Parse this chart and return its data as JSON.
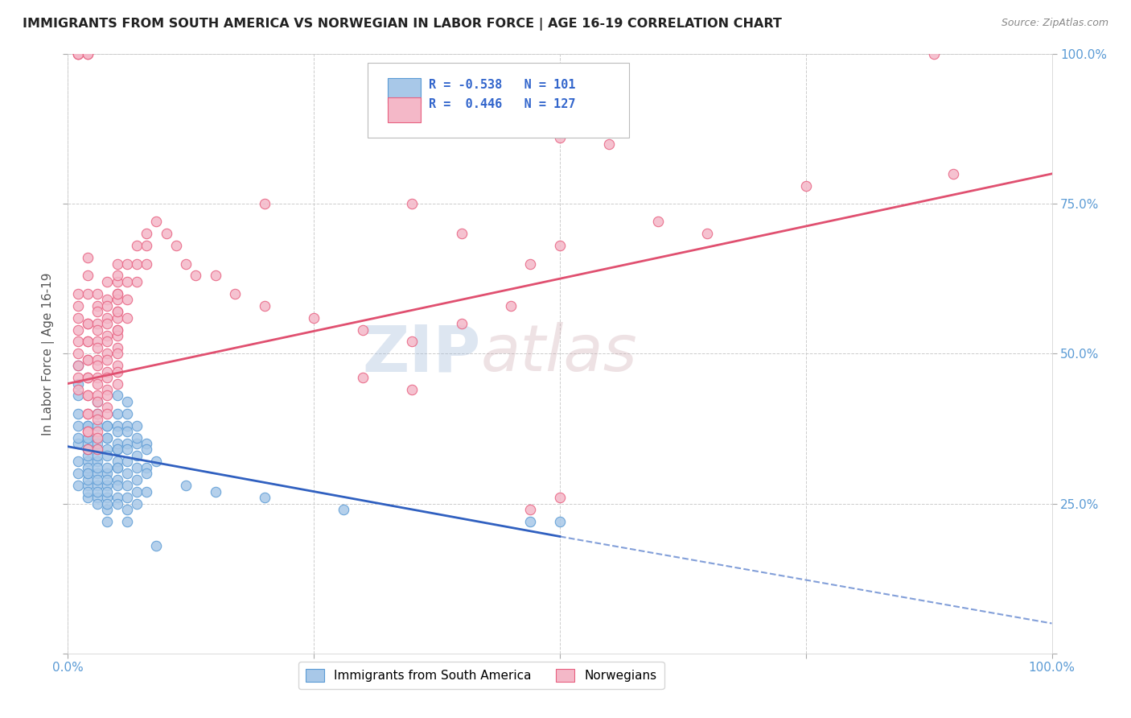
{
  "title": "IMMIGRANTS FROM SOUTH AMERICA VS NORWEGIAN IN LABOR FORCE | AGE 16-19 CORRELATION CHART",
  "source": "Source: ZipAtlas.com",
  "ylabel": "In Labor Force | Age 16-19",
  "xlim": [
    0.0,
    1.0
  ],
  "ylim": [
    0.0,
    1.0
  ],
  "blue_R": -0.538,
  "blue_N": 101,
  "pink_R": 0.446,
  "pink_N": 127,
  "blue_color": "#a8c8e8",
  "pink_color": "#f4b8c8",
  "blue_edge_color": "#5b9bd5",
  "pink_edge_color": "#e86080",
  "blue_line_color": "#3060c0",
  "pink_line_color": "#e05070",
  "blue_scatter": [
    [
      0.01,
      0.38
    ],
    [
      0.01,
      0.35
    ],
    [
      0.01,
      0.32
    ],
    [
      0.01,
      0.4
    ],
    [
      0.01,
      0.43
    ],
    [
      0.01,
      0.45
    ],
    [
      0.01,
      0.28
    ],
    [
      0.01,
      0.48
    ],
    [
      0.01,
      0.3
    ],
    [
      0.01,
      0.36
    ],
    [
      0.02,
      0.36
    ],
    [
      0.02,
      0.34
    ],
    [
      0.02,
      0.3
    ],
    [
      0.02,
      0.32
    ],
    [
      0.02,
      0.28
    ],
    [
      0.02,
      0.26
    ],
    [
      0.02,
      0.35
    ],
    [
      0.02,
      0.38
    ],
    [
      0.02,
      0.33
    ],
    [
      0.02,
      0.31
    ],
    [
      0.02,
      0.29
    ],
    [
      0.02,
      0.38
    ],
    [
      0.02,
      0.36
    ],
    [
      0.02,
      0.34
    ],
    [
      0.02,
      0.3
    ],
    [
      0.02,
      0.27
    ],
    [
      0.03,
      0.36
    ],
    [
      0.03,
      0.34
    ],
    [
      0.03,
      0.32
    ],
    [
      0.03,
      0.3
    ],
    [
      0.03,
      0.28
    ],
    [
      0.03,
      0.26
    ],
    [
      0.03,
      0.38
    ],
    [
      0.03,
      0.4
    ],
    [
      0.03,
      0.35
    ],
    [
      0.03,
      0.33
    ],
    [
      0.03,
      0.31
    ],
    [
      0.03,
      0.29
    ],
    [
      0.03,
      0.27
    ],
    [
      0.03,
      0.25
    ],
    [
      0.03,
      0.42
    ],
    [
      0.04,
      0.38
    ],
    [
      0.04,
      0.36
    ],
    [
      0.04,
      0.34
    ],
    [
      0.04,
      0.3
    ],
    [
      0.04,
      0.28
    ],
    [
      0.04,
      0.26
    ],
    [
      0.04,
      0.24
    ],
    [
      0.04,
      0.38
    ],
    [
      0.04,
      0.36
    ],
    [
      0.04,
      0.33
    ],
    [
      0.04,
      0.31
    ],
    [
      0.04,
      0.29
    ],
    [
      0.04,
      0.27
    ],
    [
      0.04,
      0.25
    ],
    [
      0.04,
      0.22
    ],
    [
      0.05,
      0.34
    ],
    [
      0.05,
      0.31
    ],
    [
      0.05,
      0.38
    ],
    [
      0.05,
      0.35
    ],
    [
      0.05,
      0.32
    ],
    [
      0.05,
      0.29
    ],
    [
      0.05,
      0.26
    ],
    [
      0.05,
      0.43
    ],
    [
      0.05,
      0.4
    ],
    [
      0.05,
      0.37
    ],
    [
      0.05,
      0.34
    ],
    [
      0.05,
      0.31
    ],
    [
      0.05,
      0.28
    ],
    [
      0.05,
      0.25
    ],
    [
      0.06,
      0.42
    ],
    [
      0.06,
      0.38
    ],
    [
      0.06,
      0.35
    ],
    [
      0.06,
      0.32
    ],
    [
      0.06,
      0.28
    ],
    [
      0.06,
      0.24
    ],
    [
      0.06,
      0.4
    ],
    [
      0.06,
      0.37
    ],
    [
      0.06,
      0.34
    ],
    [
      0.06,
      0.3
    ],
    [
      0.06,
      0.26
    ],
    [
      0.06,
      0.22
    ],
    [
      0.07,
      0.38
    ],
    [
      0.07,
      0.35
    ],
    [
      0.07,
      0.31
    ],
    [
      0.07,
      0.27
    ],
    [
      0.07,
      0.36
    ],
    [
      0.07,
      0.33
    ],
    [
      0.07,
      0.29
    ],
    [
      0.07,
      0.25
    ],
    [
      0.08,
      0.35
    ],
    [
      0.08,
      0.31
    ],
    [
      0.08,
      0.27
    ],
    [
      0.08,
      0.34
    ],
    [
      0.08,
      0.3
    ],
    [
      0.09,
      0.32
    ],
    [
      0.09,
      0.18
    ],
    [
      0.12,
      0.28
    ],
    [
      0.15,
      0.27
    ],
    [
      0.2,
      0.26
    ],
    [
      0.28,
      0.24
    ],
    [
      0.47,
      0.22
    ],
    [
      0.5,
      0.22
    ]
  ],
  "pink_scatter": [
    [
      0.01,
      0.48
    ],
    [
      0.01,
      0.5
    ],
    [
      0.01,
      0.52
    ],
    [
      0.01,
      0.54
    ],
    [
      0.01,
      0.44
    ],
    [
      0.01,
      0.46
    ],
    [
      0.01,
      0.56
    ],
    [
      0.01,
      0.58
    ],
    [
      0.01,
      0.6
    ],
    [
      0.01,
      1.0
    ],
    [
      0.01,
      1.0
    ],
    [
      0.01,
      1.0
    ],
    [
      0.02,
      0.55
    ],
    [
      0.02,
      0.52
    ],
    [
      0.02,
      0.49
    ],
    [
      0.02,
      0.46
    ],
    [
      0.02,
      0.43
    ],
    [
      0.02,
      0.4
    ],
    [
      0.02,
      0.37
    ],
    [
      0.02,
      1.0
    ],
    [
      0.02,
      1.0
    ],
    [
      0.02,
      0.55
    ],
    [
      0.02,
      0.52
    ],
    [
      0.02,
      0.49
    ],
    [
      0.02,
      0.46
    ],
    [
      0.02,
      0.43
    ],
    [
      0.02,
      0.4
    ],
    [
      0.02,
      0.37
    ],
    [
      0.02,
      0.34
    ],
    [
      0.02,
      0.6
    ],
    [
      0.02,
      0.63
    ],
    [
      0.02,
      0.66
    ],
    [
      0.03,
      0.58
    ],
    [
      0.03,
      0.55
    ],
    [
      0.03,
      0.52
    ],
    [
      0.03,
      0.49
    ],
    [
      0.03,
      0.46
    ],
    [
      0.03,
      0.43
    ],
    [
      0.03,
      0.4
    ],
    [
      0.03,
      0.37
    ],
    [
      0.03,
      0.34
    ],
    [
      0.03,
      0.6
    ],
    [
      0.03,
      0.57
    ],
    [
      0.03,
      0.54
    ],
    [
      0.03,
      0.51
    ],
    [
      0.03,
      0.48
    ],
    [
      0.03,
      0.45
    ],
    [
      0.03,
      0.42
    ],
    [
      0.03,
      0.39
    ],
    [
      0.03,
      0.36
    ],
    [
      0.04,
      0.62
    ],
    [
      0.04,
      0.59
    ],
    [
      0.04,
      0.56
    ],
    [
      0.04,
      0.53
    ],
    [
      0.04,
      0.5
    ],
    [
      0.04,
      0.47
    ],
    [
      0.04,
      0.44
    ],
    [
      0.04,
      0.41
    ],
    [
      0.04,
      0.58
    ],
    [
      0.04,
      0.55
    ],
    [
      0.04,
      0.52
    ],
    [
      0.04,
      0.49
    ],
    [
      0.04,
      0.46
    ],
    [
      0.04,
      0.43
    ],
    [
      0.04,
      0.4
    ],
    [
      0.05,
      0.6
    ],
    [
      0.05,
      0.57
    ],
    [
      0.05,
      0.54
    ],
    [
      0.05,
      0.51
    ],
    [
      0.05,
      0.48
    ],
    [
      0.05,
      0.45
    ],
    [
      0.05,
      0.65
    ],
    [
      0.05,
      0.62
    ],
    [
      0.05,
      0.59
    ],
    [
      0.05,
      0.56
    ],
    [
      0.05,
      0.53
    ],
    [
      0.05,
      0.5
    ],
    [
      0.05,
      0.47
    ],
    [
      0.05,
      0.63
    ],
    [
      0.05,
      0.6
    ],
    [
      0.05,
      0.57
    ],
    [
      0.05,
      0.54
    ],
    [
      0.06,
      0.65
    ],
    [
      0.06,
      0.62
    ],
    [
      0.06,
      0.59
    ],
    [
      0.06,
      0.56
    ],
    [
      0.07,
      0.68
    ],
    [
      0.07,
      0.65
    ],
    [
      0.07,
      0.62
    ],
    [
      0.08,
      0.7
    ],
    [
      0.08,
      0.68
    ],
    [
      0.08,
      0.65
    ],
    [
      0.09,
      0.72
    ],
    [
      0.1,
      0.7
    ],
    [
      0.11,
      0.68
    ],
    [
      0.12,
      0.65
    ],
    [
      0.13,
      0.63
    ],
    [
      0.15,
      0.63
    ],
    [
      0.17,
      0.6
    ],
    [
      0.2,
      0.58
    ],
    [
      0.25,
      0.56
    ],
    [
      0.3,
      0.54
    ],
    [
      0.35,
      0.52
    ],
    [
      0.4,
      0.55
    ],
    [
      0.45,
      0.58
    ],
    [
      0.3,
      0.46
    ],
    [
      0.35,
      0.44
    ],
    [
      0.2,
      0.75
    ],
    [
      0.4,
      0.7
    ],
    [
      0.47,
      0.65
    ],
    [
      0.5,
      0.68
    ],
    [
      0.55,
      0.85
    ],
    [
      0.6,
      0.72
    ],
    [
      0.35,
      0.75
    ],
    [
      0.65,
      0.7
    ],
    [
      0.75,
      0.78
    ],
    [
      0.88,
      1.0
    ],
    [
      0.9,
      0.8
    ],
    [
      0.5,
      0.86
    ],
    [
      0.5,
      0.26
    ],
    [
      0.47,
      0.24
    ]
  ],
  "watermark": "ZIPatlas",
  "background_color": "#ffffff",
  "grid_color": "#cccccc"
}
